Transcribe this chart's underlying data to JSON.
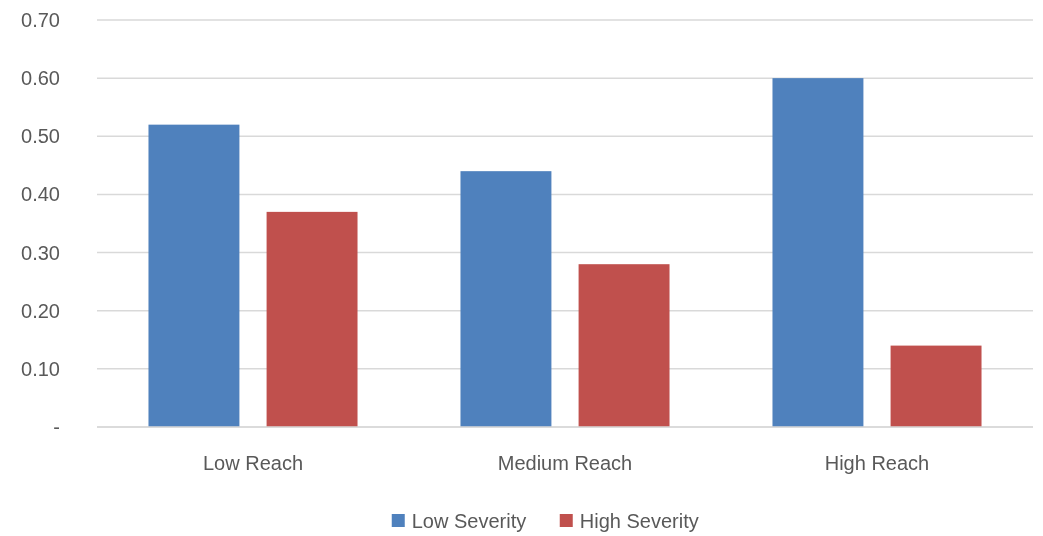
{
  "chart_data": {
    "type": "bar",
    "categories": [
      "Low Reach",
      "Medium Reach",
      "High Reach"
    ],
    "series": [
      {
        "name": "Low Severity",
        "color": "#4f81bd",
        "values": [
          0.52,
          0.44,
          0.6
        ]
      },
      {
        "name": "High Severity",
        "color": "#c0504d",
        "values": [
          0.37,
          0.28,
          0.14
        ]
      }
    ],
    "ylim": [
      0,
      0.7
    ],
    "yticks": [
      {
        "value": 0,
        "label": "-"
      },
      {
        "value": 0.1,
        "label": "0.10"
      },
      {
        "value": 0.2,
        "label": "0.20"
      },
      {
        "value": 0.3,
        "label": "0.30"
      },
      {
        "value": 0.4,
        "label": "0.40"
      },
      {
        "value": 0.5,
        "label": "0.50"
      },
      {
        "value": 0.6,
        "label": "0.60"
      },
      {
        "value": 0.7,
        "label": "0.70"
      }
    ],
    "grid": "y",
    "legend": "bottom"
  }
}
